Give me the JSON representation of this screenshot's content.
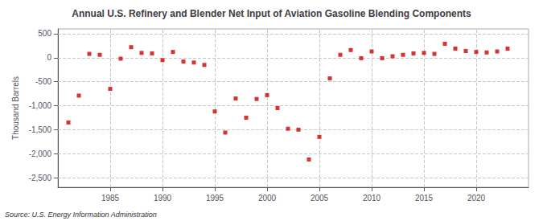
{
  "chart_data": {
    "type": "scatter",
    "title": "Annual U.S. Refinery and Blender Net Input of Aviation Gasoline Blending Components",
    "ylabel": "Thousand Barrels",
    "source": "Source: U.S. Energy Information Administration",
    "x": [
      1981,
      1982,
      1983,
      1984,
      1985,
      1986,
      1987,
      1988,
      1989,
      1990,
      1991,
      1992,
      1993,
      1994,
      1995,
      1996,
      1997,
      1998,
      1999,
      2000,
      2001,
      2002,
      2003,
      2004,
      2005,
      2006,
      2007,
      2008,
      2009,
      2010,
      2011,
      2012,
      2013,
      2014,
      2015,
      2016,
      2017,
      2018,
      2019,
      2020,
      2021,
      2022,
      2023
    ],
    "values": [
      -1350,
      -790,
      80,
      60,
      -650,
      -20,
      220,
      100,
      90,
      -50,
      120,
      -80,
      -100,
      -150,
      -1120,
      -1560,
      -850,
      -1250,
      -860,
      -780,
      -1050,
      -1480,
      -1500,
      -2120,
      -1650,
      -430,
      60,
      160,
      -10,
      130,
      -10,
      30,
      60,
      90,
      100,
      80,
      290,
      190,
      140,
      120,
      110,
      130,
      190
    ],
    "color": "#cc0000",
    "marker": "square",
    "xlim": [
      1980,
      2025
    ],
    "xticks": [
      1985,
      1990,
      1995,
      2000,
      2005,
      2010,
      2015,
      2020
    ],
    "ylim": [
      -2700,
      600
    ],
    "yticks": [
      500,
      0,
      -500,
      {
        "value": -1000,
        "label": "-1,000"
      },
      {
        "value": -1500,
        "label": "-1,500"
      },
      {
        "value": -2000,
        "label": "-2,000"
      },
      {
        "value": -2500,
        "label": "-2,500"
      }
    ],
    "grid": true
  }
}
